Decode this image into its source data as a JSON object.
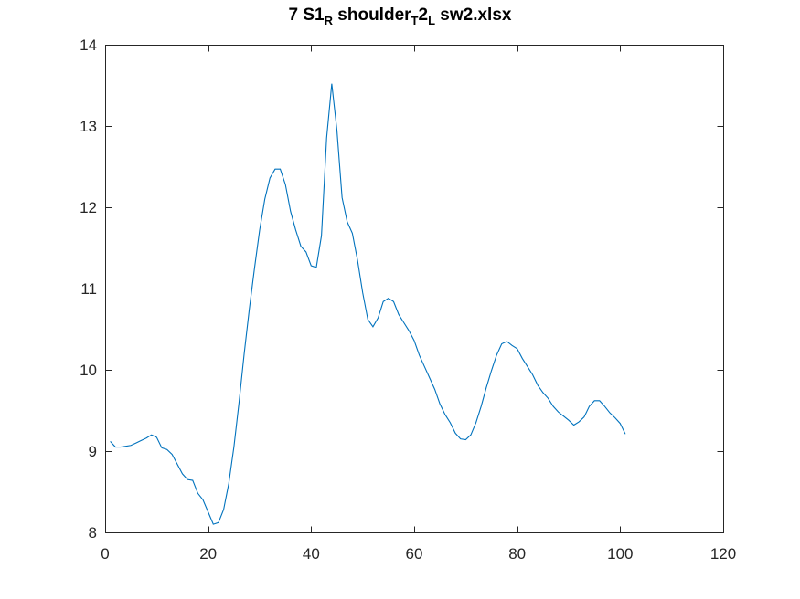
{
  "chart_data": {
    "type": "line",
    "title": {
      "parts": [
        "7 S1",
        "R",
        " shoulder",
        "T",
        "2",
        "L",
        " sw2.xlsx"
      ]
    },
    "xlabel": "",
    "ylabel": "",
    "xlim": [
      0,
      120
    ],
    "ylim": [
      8,
      14
    ],
    "xticks": [
      0,
      20,
      40,
      60,
      80,
      100,
      120
    ],
    "yticks": [
      8,
      9,
      10,
      11,
      12,
      13,
      14
    ],
    "grid": false,
    "color": "#0072BD",
    "series": [
      {
        "x": [
          1,
          2,
          3,
          4,
          5,
          6,
          7,
          8,
          9,
          10,
          11,
          12,
          13,
          14,
          15,
          16,
          17,
          18,
          19,
          20,
          21,
          22,
          23,
          24,
          25,
          26,
          27,
          28,
          29,
          30,
          31,
          32,
          33,
          34,
          35,
          36,
          37,
          38,
          39,
          40,
          41,
          42,
          43,
          44,
          45,
          46,
          47,
          48,
          49,
          50,
          51,
          52,
          53,
          54,
          55,
          56,
          57,
          58,
          59,
          60,
          61,
          62,
          63,
          64,
          65,
          66,
          67,
          68,
          69,
          70,
          71,
          72,
          73,
          74,
          75,
          76,
          77,
          78,
          79,
          80,
          81,
          82,
          83,
          84,
          85,
          86,
          87,
          88,
          89,
          90,
          91,
          92,
          93,
          94,
          95,
          96,
          97,
          98,
          99,
          100,
          101
        ],
        "y": [
          9.12,
          9.05,
          9.05,
          9.06,
          9.07,
          9.1,
          9.13,
          9.16,
          9.2,
          9.17,
          9.04,
          9.02,
          8.96,
          8.84,
          8.72,
          8.65,
          8.64,
          8.48,
          8.4,
          8.25,
          8.1,
          8.12,
          8.28,
          8.6,
          9.05,
          9.6,
          10.2,
          10.75,
          11.25,
          11.72,
          12.1,
          12.36,
          12.47,
          12.47,
          12.28,
          11.95,
          11.72,
          11.52,
          11.45,
          11.28,
          11.26,
          11.65,
          12.85,
          13.52,
          12.95,
          12.12,
          11.82,
          11.68,
          11.35,
          10.95,
          10.62,
          10.53,
          10.64,
          10.84,
          10.88,
          10.84,
          10.68,
          10.58,
          10.48,
          10.36,
          10.18,
          10.04,
          9.9,
          9.76,
          9.58,
          9.45,
          9.35,
          9.22,
          9.15,
          9.14,
          9.2,
          9.35,
          9.55,
          9.78,
          9.99,
          10.18,
          10.32,
          10.35,
          10.3,
          10.26,
          10.14,
          10.04,
          9.94,
          9.81,
          9.72,
          9.65,
          9.55,
          9.48,
          9.43,
          9.38,
          9.32,
          9.36,
          9.42,
          9.55,
          9.62,
          9.62,
          9.55,
          9.47,
          9.41,
          9.34,
          9.21
        ]
      }
    ]
  }
}
